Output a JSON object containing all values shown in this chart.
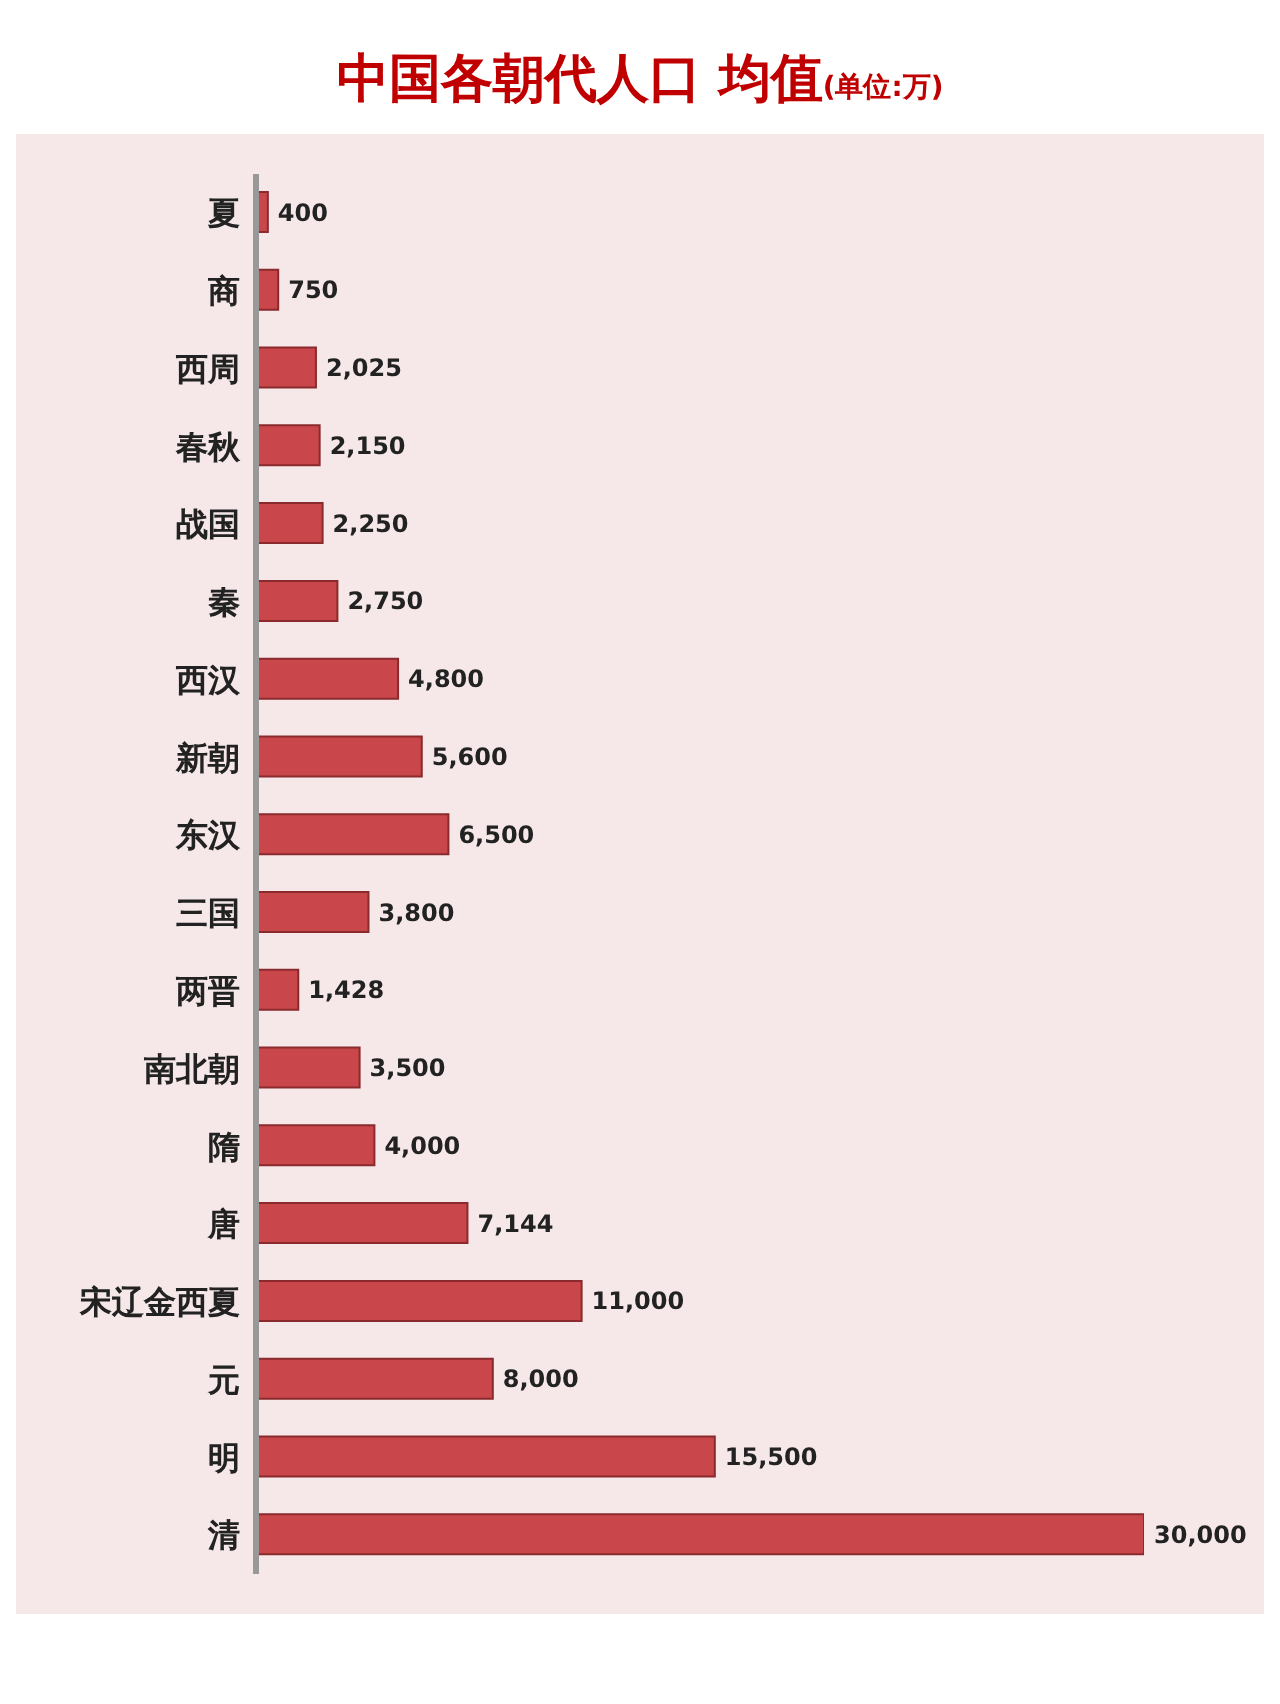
{
  "chart_data": {
    "type": "bar",
    "orientation": "horizontal",
    "title": "中国各朝代人口 均值",
    "subtitle": "(单位:万)",
    "categories": [
      "夏",
      "商",
      "西周",
      "春秋",
      "战国",
      "秦",
      "西汉",
      "新朝",
      "东汉",
      "三国",
      "两晋",
      "南北朝",
      "隋",
      "唐",
      "宋辽金西夏",
      "元",
      "明",
      "清"
    ],
    "values": [
      400,
      750,
      2025,
      2150,
      2250,
      2750,
      4800,
      5600,
      6500,
      3800,
      1428,
      3500,
      4000,
      7144,
      11000,
      8000,
      15500,
      30000
    ],
    "value_labels": [
      "400",
      "750",
      "2,025",
      "2,150",
      "2,250",
      "2,750",
      "4,800",
      "5,600",
      "6,500",
      "3,800",
      "1,428",
      "3,500",
      "4,000",
      "7,144",
      "11,000",
      "8,000",
      "15,500",
      "30,000"
    ],
    "color": "#c9474a"
  }
}
